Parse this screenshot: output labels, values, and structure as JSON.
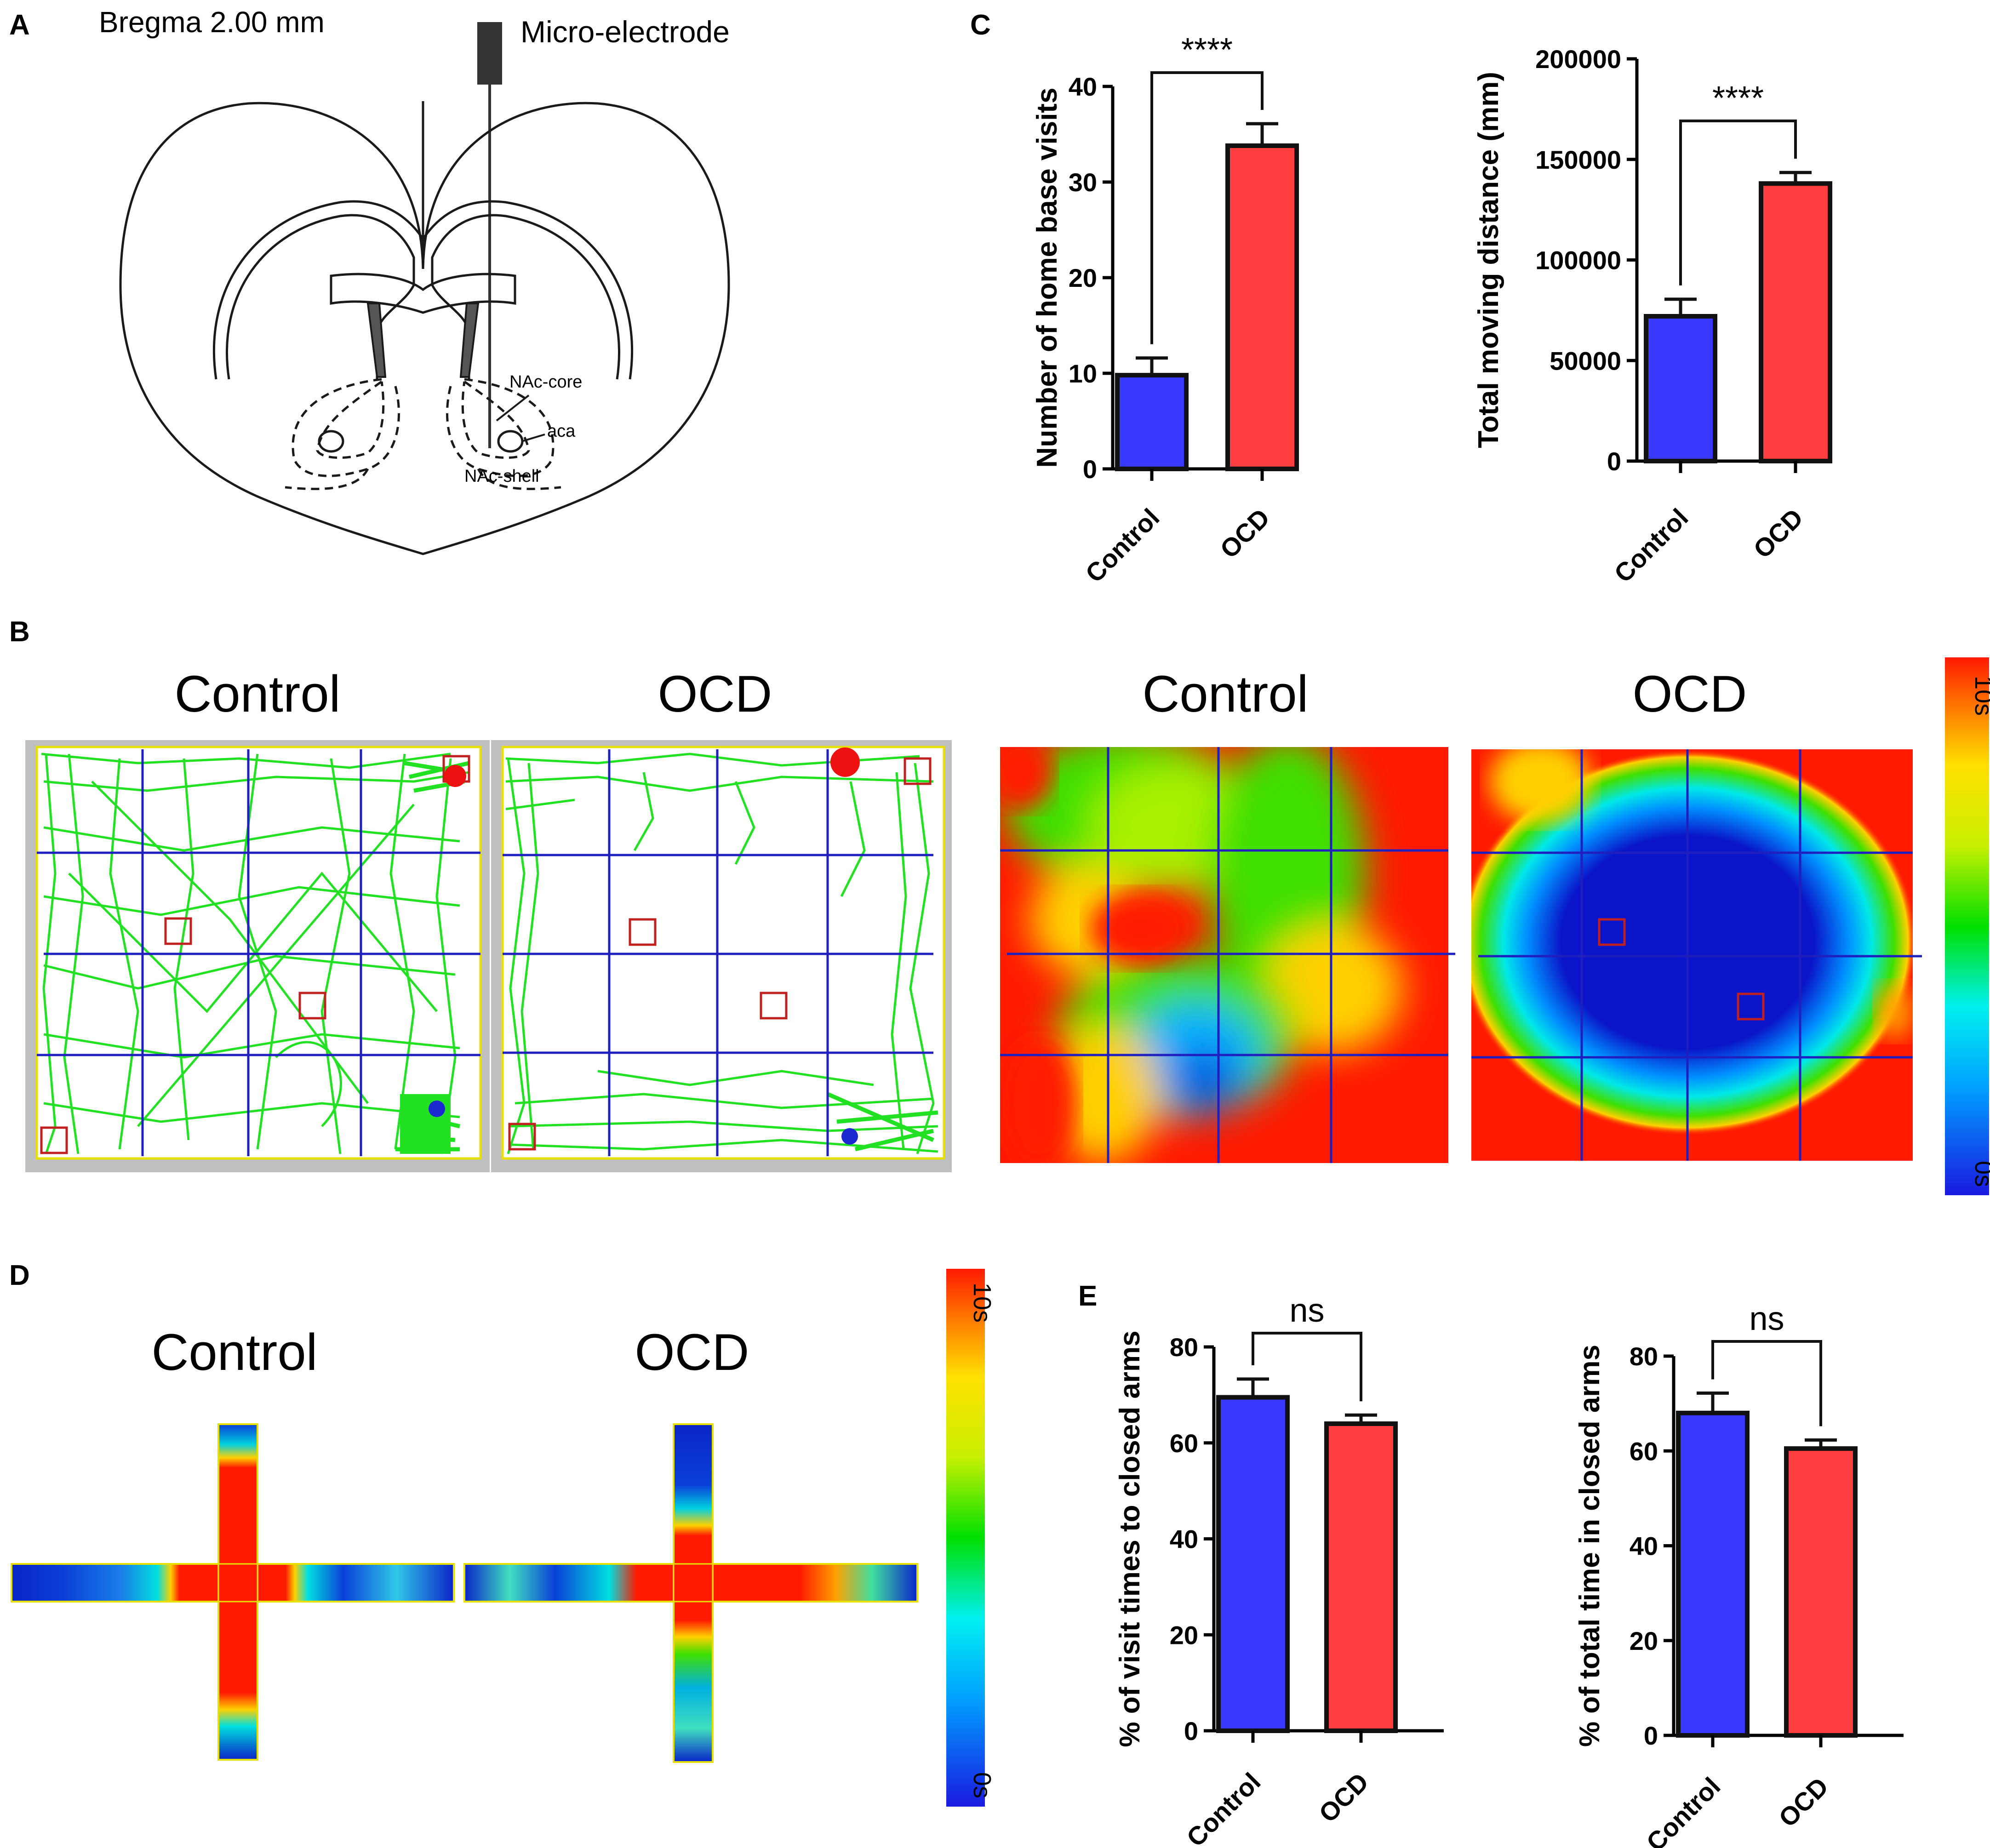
{
  "panels": {
    "A": "A",
    "B": "B",
    "C": "C",
    "D": "D",
    "E": "E"
  },
  "panelA": {
    "title": "Bregma 2.00 mm",
    "electrode": "Micro-electrode",
    "labels": [
      "NAc-core",
      "aca",
      "NAc-shell"
    ]
  },
  "panelB": {
    "track_titles": [
      "Control",
      "OCD"
    ],
    "heat_titles": [
      "Control",
      "OCD"
    ],
    "scale_max": "10s",
    "scale_min": "0s"
  },
  "panelD": {
    "titles": [
      "Control",
      "OCD"
    ],
    "scale_max": "10s",
    "scale_min": "0s"
  },
  "colors": {
    "control": "#3a3aff",
    "ocd": "#ff3f3f",
    "bar_edge": "#111111",
    "track": "#22e022",
    "grid": "#1f1fbf"
  },
  "chart_data": [
    {
      "type": "bar",
      "id": "C1",
      "categories": [
        "Control",
        "OCD"
      ],
      "values": [
        9.8,
        33.8
      ],
      "errors": [
        1.8,
        2.3
      ],
      "ylabel": "Number of home base visits",
      "yticks": [
        "0",
        "10",
        "20",
        "30",
        "40"
      ],
      "ylim": [
        0,
        40
      ],
      "significance": "****"
    },
    {
      "type": "bar",
      "id": "C2",
      "categories": [
        "Control",
        "OCD"
      ],
      "values": [
        72000,
        138000
      ],
      "errors": [
        8500,
        5500
      ],
      "ylabel": "Total moving distance (mm)",
      "yticks": [
        "0",
        "50000",
        "100000",
        "150000",
        "200000"
      ],
      "ylim": [
        0,
        200000
      ],
      "significance": "****"
    },
    {
      "type": "bar",
      "id": "E1",
      "categories": [
        "Control",
        "OCD"
      ],
      "values": [
        69.5,
        64.0
      ],
      "errors": [
        3.8,
        1.8
      ],
      "ylabel": "% of visit times to closed arms",
      "yticks": [
        "0",
        "20",
        "40",
        "60",
        "80"
      ],
      "ylim": [
        0,
        80
      ],
      "significance": "ns"
    },
    {
      "type": "bar",
      "id": "E2",
      "categories": [
        "Control",
        "OCD"
      ],
      "values": [
        68.0,
        60.5
      ],
      "errors": [
        4.2,
        1.8
      ],
      "ylabel": "% of total time in closed arms",
      "yticks": [
        "0",
        "20",
        "40",
        "60",
        "80"
      ],
      "ylim": [
        0,
        80
      ],
      "significance": "ns"
    }
  ]
}
